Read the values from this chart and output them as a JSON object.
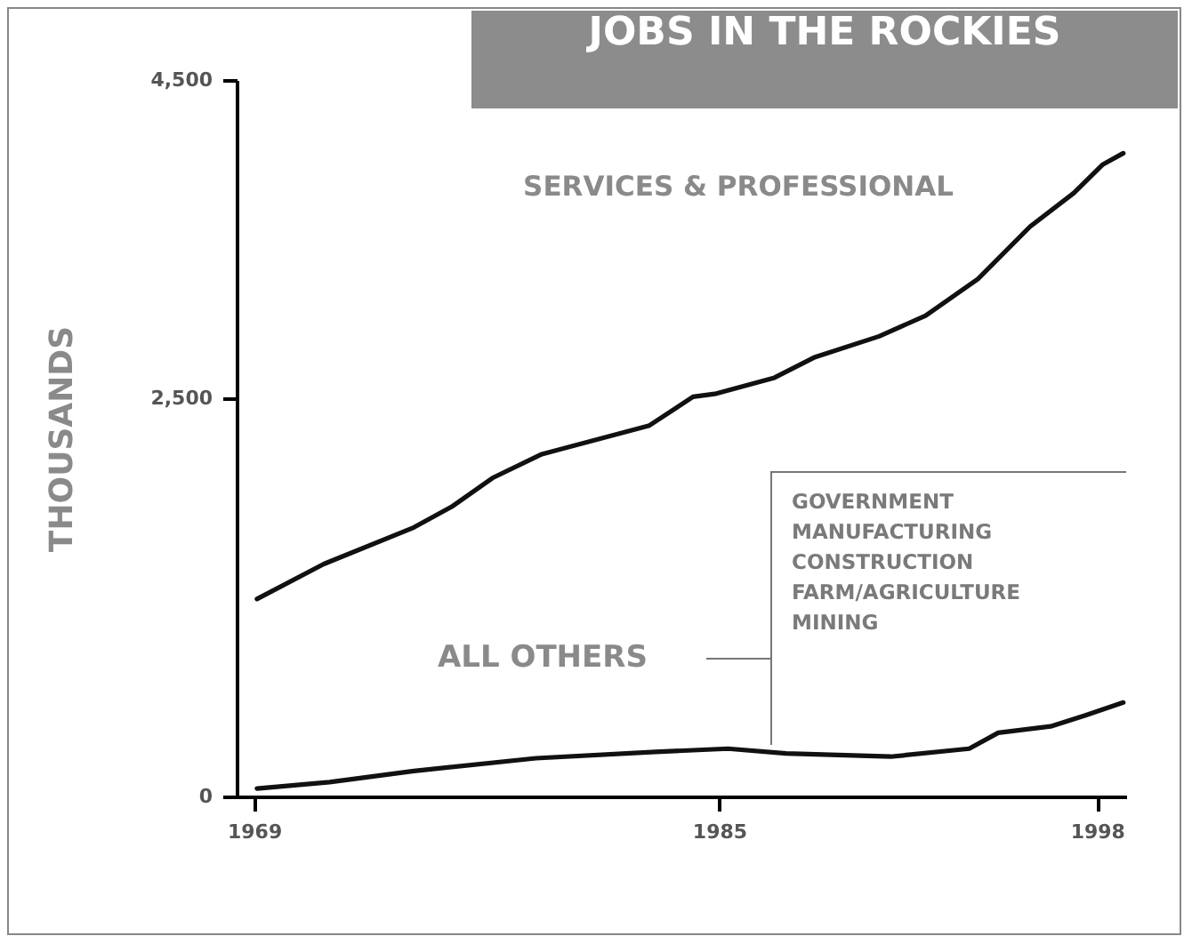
{
  "chart_data": {
    "type": "line",
    "title": "JOBS IN THE ROCKIES",
    "ylabel": "THOUSANDS",
    "xlim": [
      1968.4,
      1999
    ],
    "xticks": [
      1969,
      1985,
      1998
    ],
    "ylim": [
      0,
      4500
    ],
    "yticks": [
      0,
      {
        "value": 2500,
        "label": "2,500"
      },
      {
        "value": 4500,
        "label": "4,500"
      }
    ],
    "grid": false,
    "legend": false,
    "marker": "none",
    "line_style": "solid",
    "series": [
      {
        "name": "SERVICES & PROFESSIONAL",
        "color": "#111111",
        "x": [
          1969.1,
          1971.4,
          1974.5,
          1975.8,
          1977.2,
          1978.9,
          1982.6,
          1984.1,
          1984.9,
          1986.9,
          1988.3,
          1990.5,
          1992.1,
          1993.9,
          1995.7,
          1997.2,
          1998.2,
          1998.9
        ],
        "values": [
          1240,
          1460,
          1690,
          1820,
          2000,
          2150,
          2330,
          2510,
          2530,
          2630,
          2760,
          2890,
          3020,
          3250,
          3580,
          3790,
          3970,
          4040
        ]
      },
      {
        "name": "ALL OTHERS",
        "color": "#111111",
        "x": [
          1969.1,
          1971.6,
          1974.5,
          1978.7,
          1982.8,
          1985.3,
          1987.3,
          1990.9,
          1993.6,
          1994.6,
          1996.4,
          1997.6,
          1998.9
        ],
        "values": [
          50,
          90,
          160,
          240,
          280,
          300,
          270,
          250,
          300,
          400,
          440,
          510,
          590
        ]
      }
    ],
    "annotations": [
      "GOVERNMENT",
      "MANUFACTURING",
      "CONSTRUCTION",
      "FARM/AGRICULTURE",
      "MINING"
    ]
  }
}
